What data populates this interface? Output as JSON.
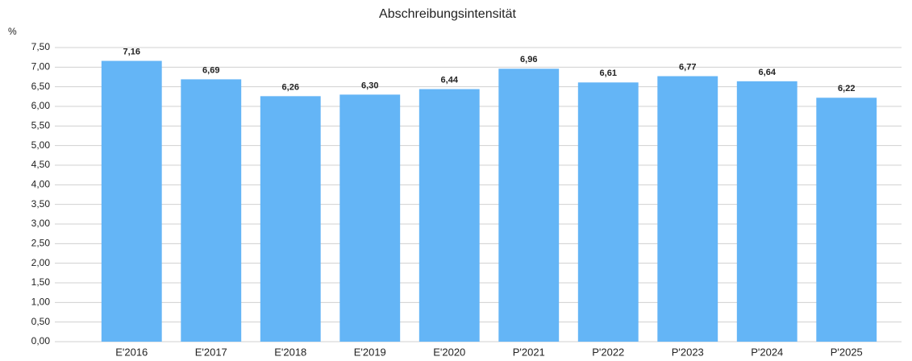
{
  "chart_data": {
    "type": "bar",
    "title": "Abschreibungsintensität",
    "y_axis_label": "%",
    "categories": [
      "E'2016",
      "E'2017",
      "E'2018",
      "E'2019",
      "E'2020",
      "P'2021",
      "P'2022",
      "P'2023",
      "P'2024",
      "P'2025"
    ],
    "values": [
      7.16,
      6.69,
      6.26,
      6.3,
      6.44,
      6.96,
      6.61,
      6.77,
      6.64,
      6.22
    ],
    "value_labels": [
      "7,16",
      "6,69",
      "6,26",
      "6,30",
      "6,44",
      "6,96",
      "6,61",
      "6,77",
      "6,64",
      "6,22"
    ],
    "color": "#64b5f6",
    "ylim": [
      0,
      7.5
    ],
    "yticks": [
      {
        "value": 0,
        "label": "0,00"
      },
      {
        "value": 0.5,
        "label": "0,50"
      },
      {
        "value": 1,
        "label": "1,00"
      },
      {
        "value": 1.5,
        "label": "1,50"
      },
      {
        "value": 2,
        "label": "2,00"
      },
      {
        "value": 2.5,
        "label": "2,50"
      },
      {
        "value": 3,
        "label": "3,00"
      },
      {
        "value": 3.5,
        "label": "3,50"
      },
      {
        "value": 4,
        "label": "4,00"
      },
      {
        "value": 4.5,
        "label": "4,50"
      },
      {
        "value": 5,
        "label": "5,00"
      },
      {
        "value": 5.5,
        "label": "5,50"
      },
      {
        "value": 6,
        "label": "6,00"
      },
      {
        "value": 6.5,
        "label": "6,50"
      },
      {
        "value": 7,
        "label": "7,00"
      },
      {
        "value": 7.5,
        "label": "7,50"
      }
    ],
    "grid": true
  }
}
